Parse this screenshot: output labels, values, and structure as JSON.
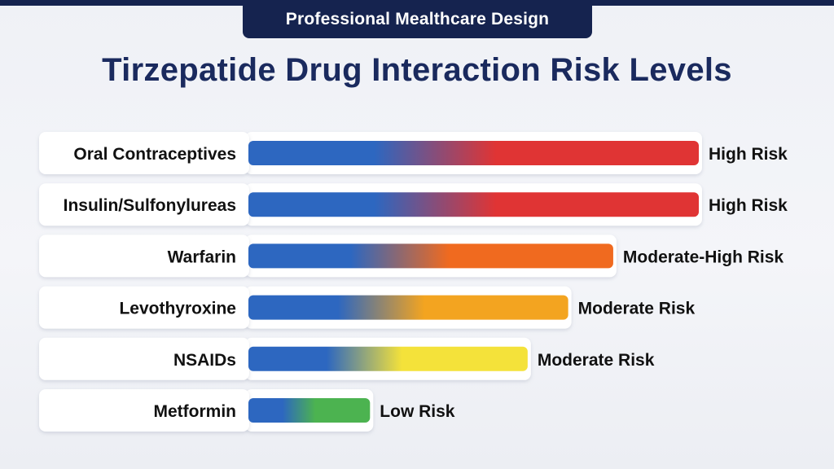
{
  "header": {
    "banner": "Professional Mealthcare Design",
    "title": "Tirzepatide Drug Interaction Risk Levels"
  },
  "colors": {
    "navy": "#15234f",
    "title": "#1a2a5e",
    "low_blue": "#2d67c0",
    "high": "#e03434",
    "moderate_high": "#f06a1f",
    "moderate_orange": "#f3a420",
    "moderate_yellow": "#f4e23a",
    "low": "#4cb350"
  },
  "chart_data": {
    "type": "bar",
    "orientation": "horizontal",
    "title": "Tirzepatide Drug Interaction Risk Levels",
    "xlabel": "",
    "ylabel": "",
    "xlim": [
      0,
      100
    ],
    "grid": false,
    "categories": [
      "Oral Contraceptives",
      "Insulin/Sulfonylureas",
      "Warfarin",
      "Levothyroxine",
      "NSAIDs",
      "Metformin"
    ],
    "values": [
      100,
      100,
      81,
      71,
      62,
      27
    ],
    "risk_labels": [
      "High Risk",
      "High Risk",
      "Moderate-High Risk",
      "Moderate Risk",
      "Moderate Risk",
      "Low Risk"
    ],
    "end_colors": [
      "#e03434",
      "#e03434",
      "#f06a1f",
      "#f3a420",
      "#f4e23a",
      "#4cb350"
    ]
  }
}
